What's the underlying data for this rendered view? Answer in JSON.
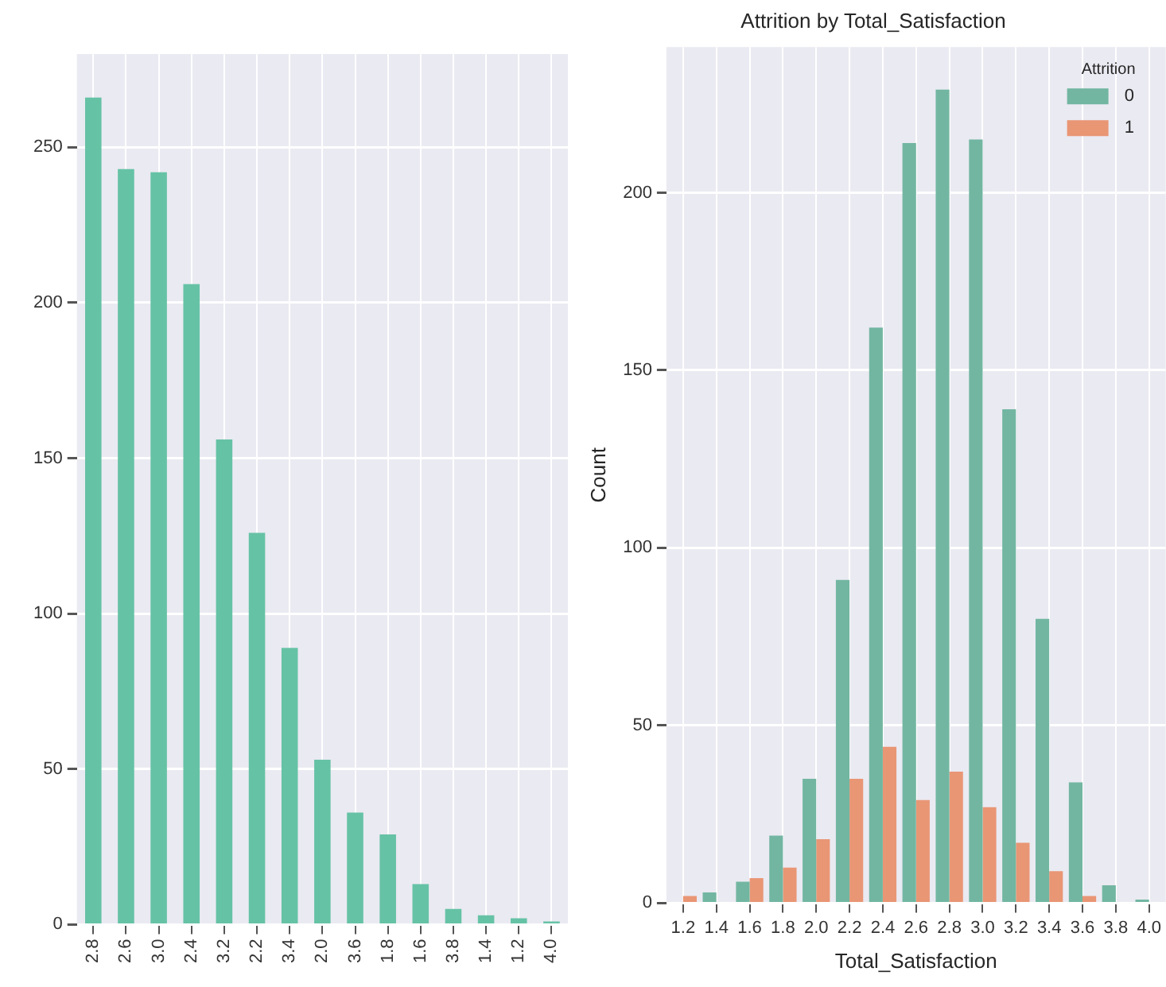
{
  "chart_data": [
    {
      "type": "bar",
      "categories": [
        "2.8",
        "2.6",
        "3.0",
        "2.4",
        "3.2",
        "2.2",
        "3.4",
        "2.0",
        "3.6",
        "1.8",
        "1.6",
        "3.8",
        "1.4",
        "1.2",
        "4.0"
      ],
      "values": [
        266,
        243,
        242,
        206,
        156,
        126,
        89,
        53,
        36,
        29,
        13,
        5,
        3,
        2,
        1
      ],
      "color": "#66c2a5",
      "ylim": [
        0,
        280
      ],
      "yticks": [
        0,
        50,
        100,
        150,
        200,
        250
      ],
      "grid": true
    },
    {
      "type": "bar",
      "title": "Attrition by Total_Satisfaction",
      "xlabel": "Total_Satisfaction",
      "ylabel": "Count",
      "legend_title": "Attrition",
      "legend": "top right",
      "categories": [
        "1.2",
        "1.4",
        "1.6",
        "1.8",
        "2.0",
        "2.2",
        "2.4",
        "2.6",
        "2.8",
        "3.0",
        "3.2",
        "3.4",
        "3.6",
        "3.8",
        "4.0"
      ],
      "series": [
        {
          "name": "0",
          "color": "#72b6a1",
          "values": [
            0,
            3,
            6,
            19,
            35,
            91,
            162,
            214,
            229,
            215,
            139,
            80,
            34,
            5,
            1
          ]
        },
        {
          "name": "1",
          "color": "#e99675",
          "values": [
            2,
            0,
            7,
            10,
            18,
            35,
            44,
            29,
            37,
            27,
            17,
            9,
            2,
            0,
            0
          ]
        }
      ],
      "ylim": [
        0,
        241
      ],
      "yticks": [
        0,
        50,
        100,
        150,
        200
      ],
      "grid": true
    }
  ]
}
